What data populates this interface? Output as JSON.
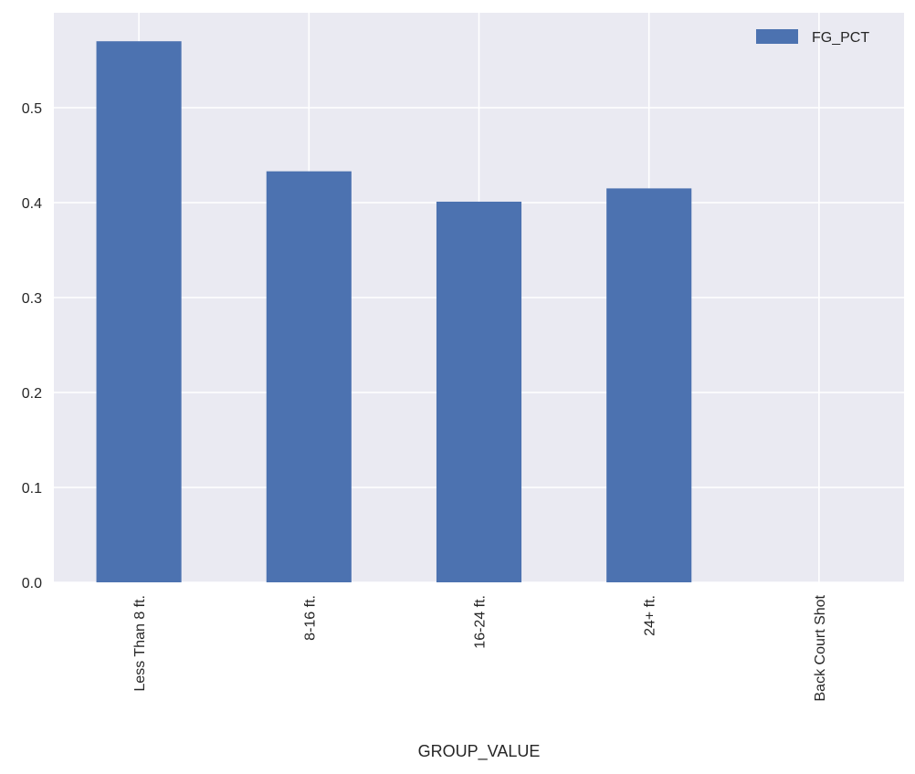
{
  "chart_data": {
    "type": "bar",
    "categories": [
      "Less Than 8 ft.",
      "8-16 ft.",
      "16-24 ft.",
      "24+ ft.",
      "Back Court Shot"
    ],
    "series": [
      {
        "name": "FG_PCT",
        "values": [
          0.57,
          0.433,
          0.401,
          0.415,
          0.0
        ],
        "color": "#4c72b0"
      }
    ],
    "xlabel": "GROUP_VALUE",
    "ylabel": "",
    "ylim": [
      0,
      0.6
    ],
    "yticks": [
      "0.0",
      "0.1",
      "0.2",
      "0.3",
      "0.4",
      "0.5"
    ],
    "grid": true,
    "legend": "top-right",
    "background_color": "#eaeaf2",
    "grid_color": "#ffffff"
  }
}
